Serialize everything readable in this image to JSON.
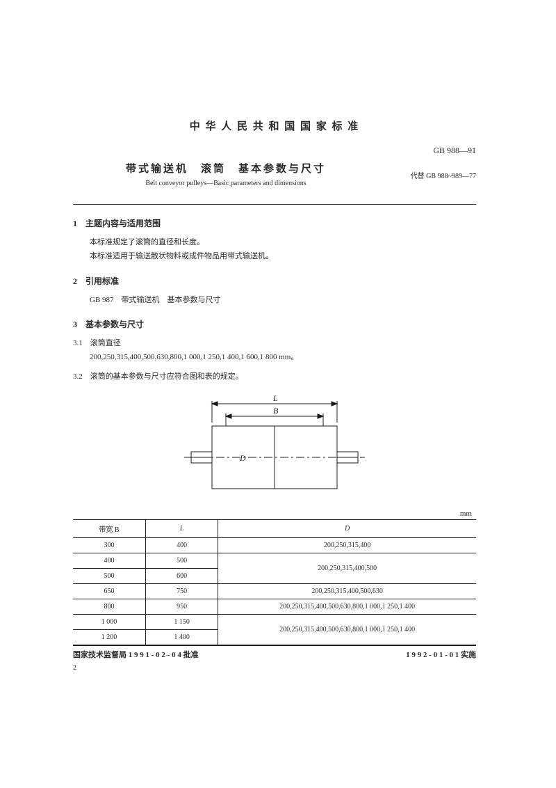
{
  "header": {
    "country_title": "中 华 人 民 共 和 国 国 家 标 准",
    "standard_code": "GB 988—91",
    "replaces": "代替 GB 988~989—77",
    "title_cn": "带式输送机　滚筒　基本参数与尺寸",
    "title_en": "Belt conveyor pulleys—Basic parameters and dimensions"
  },
  "sections": {
    "s1_h": "1　主题内容与适用范围",
    "s1_p1": "本标准规定了滚筒的直径和长度。",
    "s1_p2": "本标准适用于输送散状物料或成件物品用带式输送机。",
    "s2_h": "2　引用标准",
    "s2_p1": "GB 987　带式输送机　基本参数与尺寸",
    "s3_h": "3　基本参数与尺寸",
    "s3_1_h": "3.1　滚筒直径",
    "s3_1_p": "200,250,315,400,500,630,800,1 000,1 250,1 400,1 600,1 800 mm。",
    "s3_2_h": "3.2　滚筒的基本参数与尺寸应符合图和表的规定。"
  },
  "diagram": {
    "label_L": "L",
    "label_B": "B",
    "label_D": "D",
    "stroke": "#1a1a1a",
    "fill": "#ffffff"
  },
  "table": {
    "unit": "mm",
    "headers": {
      "b": "带宽 B",
      "l": "L",
      "d": "D"
    },
    "rows": [
      {
        "b": "300",
        "l": "400",
        "d": "200,250,315,400",
        "d_rowspan": 1
      },
      {
        "b": "400",
        "l": "500",
        "d": "200,250,315,400,500",
        "d_rowspan": 2
      },
      {
        "b": "500",
        "l": "600"
      },
      {
        "b": "650",
        "l": "750",
        "d": "200,250,315,400,500,630",
        "d_rowspan": 1
      },
      {
        "b": "800",
        "l": "950",
        "d": "200,250,315,400,500,630,800,1 000,1 250,1 400",
        "d_rowspan": 1
      },
      {
        "b": "1 000",
        "l": "1 150",
        "d": "200,250,315,400,500,630,800,1 000,1 250,1 400",
        "d_rowspan": 2
      },
      {
        "b": "1 200",
        "l": "1 400"
      }
    ]
  },
  "footer": {
    "approved": "国家技术监督局 1 9 9 1 - 0 2 - 0 4 批准",
    "effective": "1 9 9 2 - 0 1 - 0 1 实施",
    "page": "2"
  }
}
